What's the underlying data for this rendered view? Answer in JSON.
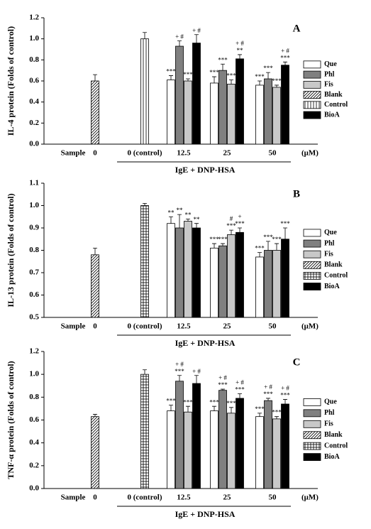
{
  "chart_data": [
    {
      "type": "bar",
      "panel_label": "A",
      "y_label": "IL-4 protein (Folds of control)",
      "categories": [
        "Sample",
        "0",
        "0 (control)",
        "12.5",
        "25",
        "50"
      ],
      "x_unit": "(μM)",
      "group_label": "IgE + DNP-HSA",
      "ylim": [
        0,
        1.2
      ],
      "yticks": [
        {
          "value": 0,
          "label": "0.0"
        },
        0.2,
        0.4,
        0.6,
        0.8,
        {
          "value": 1,
          "label": "1.0"
        },
        1.2
      ],
      "series": [
        {
          "name": "Que",
          "color": "#ffffff",
          "values": [
            null,
            null,
            null,
            0.61,
            0.58,
            0.56
          ],
          "errors": [
            null,
            null,
            null,
            0.04,
            0.06,
            0.04
          ],
          "annotations": [
            null,
            null,
            null,
            [
              "***"
            ],
            [
              "***"
            ],
            [
              "***"
            ]
          ]
        },
        {
          "name": "Phl",
          "color": "#808080",
          "values": [
            null,
            null,
            null,
            0.93,
            0.7,
            0.62
          ],
          "errors": [
            null,
            null,
            null,
            0.05,
            0.06,
            0.06
          ],
          "annotations": [
            null,
            null,
            null,
            [
              "+ #"
            ],
            [
              "***"
            ],
            [
              "***"
            ]
          ]
        },
        {
          "name": "Fis",
          "color": "#c8c8c8",
          "values": [
            null,
            null,
            null,
            0.6,
            0.57,
            0.54
          ],
          "errors": [
            null,
            null,
            null,
            0.02,
            0.04,
            0.02
          ],
          "annotations": [
            null,
            null,
            null,
            [
              "***"
            ],
            [
              "***"
            ],
            [
              "***"
            ]
          ]
        },
        {
          "name": "Blank",
          "color": "#000000",
          "pattern": "hatch",
          "values": [
            null,
            0.6,
            null,
            null,
            null,
            null
          ],
          "errors": [
            null,
            0.06,
            null,
            null,
            null,
            null
          ]
        },
        {
          "name": "Control",
          "color": "#000000",
          "pattern": "vlines",
          "values": [
            null,
            null,
            1.0,
            null,
            null,
            null
          ],
          "errors": [
            null,
            null,
            0.06,
            null,
            null,
            null
          ]
        },
        {
          "name": "BioA",
          "color": "#000000",
          "values": [
            null,
            null,
            null,
            0.96,
            0.81,
            0.75
          ],
          "errors": [
            null,
            null,
            null,
            0.08,
            0.04,
            0.03
          ],
          "annotations": [
            null,
            null,
            null,
            [
              "+ #"
            ],
            [
              "+ #",
              "**"
            ],
            [
              "+ #",
              "***"
            ]
          ]
        }
      ]
    },
    {
      "type": "bar",
      "panel_label": "B",
      "y_label": "IL-13 protein (Folds of control)",
      "categories": [
        "Sample",
        "0",
        "0 (control)",
        "12.5",
        "25",
        "50"
      ],
      "x_unit": "(μM)",
      "group_label": "IgE + DNP-HSA",
      "ylim": [
        0.5,
        1.1
      ],
      "yticks": [
        0.5,
        0.6,
        0.7,
        0.8,
        0.9,
        {
          "value": 1,
          "label": "1.0"
        },
        1.1
      ],
      "series": [
        {
          "name": "Que",
          "color": "#ffffff",
          "values": [
            null,
            null,
            null,
            0.92,
            0.81,
            0.77
          ],
          "errors": [
            null,
            null,
            null,
            0.03,
            0.02,
            0.02
          ],
          "annotations": [
            null,
            null,
            null,
            [
              "**"
            ],
            [
              "***"
            ],
            [
              "***"
            ]
          ]
        },
        {
          "name": "Phl",
          "color": "#808080",
          "values": [
            null,
            null,
            null,
            0.9,
            0.82,
            0.8
          ],
          "errors": [
            null,
            null,
            null,
            0.06,
            0.01,
            0.04
          ],
          "annotations": [
            null,
            null,
            null,
            [
              "**"
            ],
            [
              "***"
            ],
            [
              "***"
            ]
          ]
        },
        {
          "name": "Fis",
          "color": "#c8c8c8",
          "values": [
            null,
            null,
            null,
            0.93,
            0.87,
            0.8
          ],
          "errors": [
            null,
            null,
            null,
            0.01,
            0.02,
            0.03
          ],
          "annotations": [
            null,
            null,
            null,
            [
              "**"
            ],
            [
              "#",
              "***"
            ],
            [
              "***"
            ]
          ]
        },
        {
          "name": "Blank",
          "color": "#000000",
          "pattern": "hatch",
          "values": [
            null,
            0.78,
            null,
            null,
            null,
            null
          ],
          "errors": [
            null,
            0.03,
            null,
            null,
            null,
            null
          ]
        },
        {
          "name": "Control",
          "color": "#000000",
          "pattern": "grid",
          "values": [
            null,
            null,
            1.0,
            null,
            null,
            null
          ],
          "errors": [
            null,
            null,
            0.01,
            null,
            null,
            null
          ]
        },
        {
          "name": "BioA",
          "color": "#000000",
          "values": [
            null,
            null,
            null,
            0.9,
            0.88,
            0.85
          ],
          "errors": [
            null,
            null,
            null,
            0.02,
            0.02,
            0.05
          ],
          "annotations": [
            null,
            null,
            null,
            [
              "**"
            ],
            [
              "+",
              "***"
            ],
            [
              "***"
            ]
          ]
        }
      ]
    },
    {
      "type": "bar",
      "panel_label": "C",
      "y_label": "TNF-α protein (Folds of control)",
      "categories": [
        "Sample",
        "0",
        "0 (control)",
        "12.5",
        "25",
        "50"
      ],
      "x_unit": "(μM)",
      "group_label": "IgE + DNP-HSA",
      "ylim": [
        0,
        1.2
      ],
      "yticks": [
        {
          "value": 0,
          "label": "0.0"
        },
        0.2,
        0.4,
        0.6,
        0.8,
        {
          "value": 1,
          "label": "1.0"
        },
        1.2
      ],
      "series": [
        {
          "name": "Que",
          "color": "#ffffff",
          "values": [
            null,
            null,
            null,
            0.68,
            0.68,
            0.63
          ],
          "errors": [
            null,
            null,
            null,
            0.05,
            0.04,
            0.03
          ],
          "annotations": [
            null,
            null,
            null,
            [
              "***"
            ],
            [
              "***"
            ],
            [
              "***"
            ]
          ]
        },
        {
          "name": "Phl",
          "color": "#808080",
          "values": [
            null,
            null,
            null,
            0.94,
            0.86,
            0.77
          ],
          "errors": [
            null,
            null,
            null,
            0.05,
            0.01,
            0.02
          ],
          "annotations": [
            null,
            null,
            null,
            [
              "+ #",
              "***"
            ],
            [
              "+ #",
              "***"
            ],
            [
              "+ #",
              "***"
            ]
          ]
        },
        {
          "name": "Fis",
          "color": "#c8c8c8",
          "values": [
            null,
            null,
            null,
            0.67,
            0.66,
            0.61
          ],
          "errors": [
            null,
            null,
            null,
            0.05,
            0.05,
            0.02
          ],
          "annotations": [
            null,
            null,
            null,
            [
              "***"
            ],
            [
              "***"
            ],
            [
              "***"
            ]
          ]
        },
        {
          "name": "Blank",
          "color": "#000000",
          "pattern": "hatch",
          "values": [
            null,
            0.63,
            null,
            null,
            null,
            null
          ],
          "errors": [
            null,
            0.02,
            null,
            null,
            null,
            null
          ]
        },
        {
          "name": "Control",
          "color": "#000000",
          "pattern": "grid",
          "values": [
            null,
            null,
            1.0,
            null,
            null,
            null
          ],
          "errors": [
            null,
            null,
            0.04,
            null,
            null,
            null
          ]
        },
        {
          "name": "BioA",
          "color": "#000000",
          "values": [
            null,
            null,
            null,
            0.92,
            0.79,
            0.74
          ],
          "errors": [
            null,
            null,
            null,
            0.07,
            0.04,
            0.04
          ],
          "annotations": [
            null,
            null,
            null,
            [
              "+ #"
            ],
            [
              "+ #",
              "***"
            ],
            [
              "+ #",
              "***"
            ]
          ]
        }
      ]
    }
  ]
}
